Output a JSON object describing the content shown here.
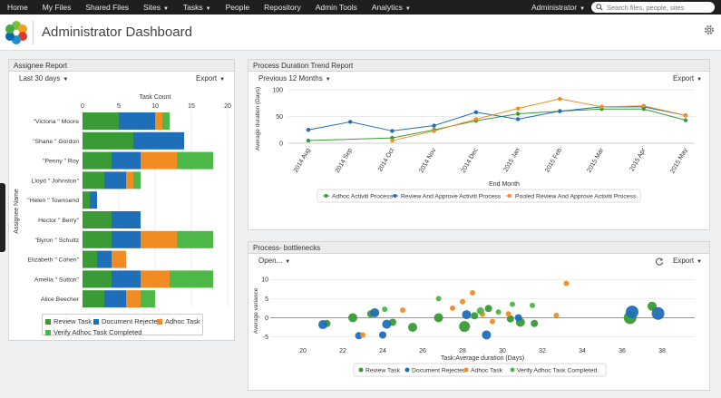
{
  "nav": {
    "items": [
      {
        "label": "Home",
        "caret": false
      },
      {
        "label": "My Files",
        "caret": false
      },
      {
        "label": "Shared Files",
        "caret": false
      },
      {
        "label": "Sites",
        "caret": true
      },
      {
        "label": "Tasks",
        "caret": true
      },
      {
        "label": "People",
        "caret": false
      },
      {
        "label": "Repository",
        "caret": false
      },
      {
        "label": "Admin Tools",
        "caret": false
      },
      {
        "label": "Analytics",
        "caret": true
      }
    ],
    "user": "Administrator",
    "search_placeholder": "Search files, people, sites"
  },
  "header": {
    "title": "Administrator Dashboard"
  },
  "colors": {
    "green": "#3a9a35",
    "blue": "#1f6fb8",
    "orange": "#f08c21",
    "lightgreen": "#4db847"
  },
  "assignee": {
    "title": "Assignee Report",
    "filter": "Last 30 days",
    "export": "Export"
  },
  "trend": {
    "title": "Process Duration Trend Report",
    "filter": "Previous 12 Months",
    "export": "Export"
  },
  "bottleneck": {
    "title": "Process- bottlenecks",
    "filter": "Open...",
    "export": "Export"
  },
  "chart_data": [
    {
      "type": "bar",
      "orientation": "horizontal",
      "stacked": true,
      "xlabel": "Task Count",
      "ylabel": "Assignee Name",
      "xlim": [
        0,
        20
      ],
      "xticks": [
        0,
        5,
        10,
        15,
        20
      ],
      "categories": [
        "\"Victoria \" Moore",
        "\"Shane \" Gordon",
        "\"Penny \" Roy",
        "Lloyd \" Johnston\"",
        "\"Helen \" Townsend",
        "Hector \" Berry\"",
        "\"Byron \" Schultz",
        "Elizabeth \" Cohen\"",
        "Amelia \" Sutton\"",
        "Alice Beecher"
      ],
      "series": [
        {
          "name": "Review Task",
          "color": "#3a9a35",
          "values": [
            5,
            7,
            4,
            3,
            1,
            4,
            4,
            2,
            4,
            3
          ]
        },
        {
          "name": "Document Rejected",
          "color": "#1f6fb8",
          "values": [
            5,
            7,
            4,
            3,
            1,
            4,
            4,
            2,
            4,
            3
          ]
        },
        {
          "name": "Adhoc Task",
          "color": "#f08c21",
          "values": [
            1,
            0,
            5,
            1,
            0,
            0,
            5,
            2,
            4,
            2
          ]
        },
        {
          "name": "Verify Adhoc Task Completed",
          "color": "#4db847",
          "values": [
            1,
            0,
            5,
            1,
            0,
            0,
            5,
            0,
            6,
            2
          ]
        }
      ]
    },
    {
      "type": "line",
      "xlabel": "End Month",
      "ylabel": "Average duration (Days)",
      "ylim": [
        0,
        100
      ],
      "yticks": [
        0,
        50,
        100
      ],
      "categories": [
        "2014 Aug",
        "2014 Sep",
        "2014 Oct",
        "2014 Nov",
        "2014 Dec",
        "2015 Jan",
        "2015 Feb",
        "2015 Mar",
        "2015 Apr",
        "2015 May"
      ],
      "series": [
        {
          "name": "Adhoc Activiti Process",
          "color": "#3a9a35",
          "values": [
            5,
            null,
            10,
            25,
            42,
            55,
            60,
            64,
            64,
            43
          ]
        },
        {
          "name": "Review And Approve Activiti Process",
          "color": "#1f6fb8",
          "values": [
            25,
            40,
            23,
            33,
            58,
            45,
            60,
            68,
            68,
            52
          ]
        },
        {
          "name": "Pooled Review And Approve Activiti Process",
          "color": "#f08c21",
          "values": [
            null,
            null,
            5,
            23,
            45,
            65,
            83,
            68,
            70,
            52
          ]
        }
      ]
    },
    {
      "type": "scatter",
      "xlabel": "Task:Average duration (Days)",
      "ylabel": "Average variance",
      "xlim": [
        19,
        39
      ],
      "ylim": [
        -7,
        11
      ],
      "xticks": [
        20,
        22,
        24,
        26,
        28,
        30,
        32,
        34,
        36,
        38
      ],
      "yticks": [
        -5,
        0,
        5,
        10
      ],
      "series": [
        {
          "name": "Review Task",
          "color": "#3a9a35",
          "points": [
            [
              21.2,
              -1.5,
              4
            ],
            [
              22.5,
              0,
              5
            ],
            [
              23.4,
              1,
              4
            ],
            [
              24.5,
              -1.2,
              4
            ],
            [
              25.5,
              -2.5,
              5
            ],
            [
              26.8,
              0,
              5
            ],
            [
              28.1,
              -2.3,
              6
            ],
            [
              28.6,
              0.5,
              4
            ],
            [
              29.3,
              2.4,
              4
            ],
            [
              30.4,
              -0.3,
              4
            ],
            [
              30.9,
              -1.2,
              5
            ],
            [
              31.6,
              -1.5,
              4
            ],
            [
              36.4,
              0,
              7
            ],
            [
              37.5,
              3,
              5
            ]
          ]
        },
        {
          "name": "Document Rejected",
          "color": "#1f6fb8",
          "points": [
            [
              21,
              -1.8,
              5
            ],
            [
              22.8,
              -4.7,
              4
            ],
            [
              23.6,
              1.3,
              5
            ],
            [
              24.2,
              -1.7,
              5
            ],
            [
              24,
              -4.5,
              4
            ],
            [
              28.2,
              0.8,
              5
            ],
            [
              29.2,
              -4.5,
              5
            ],
            [
              30.8,
              0,
              4
            ],
            [
              36.5,
              1.5,
              7
            ],
            [
              37.8,
              1.1,
              7
            ]
          ]
        },
        {
          "name": "Adhoc Task",
          "color": "#f08c21",
          "points": [
            [
              23,
              -4.5,
              3
            ],
            [
              25,
              2,
              3
            ],
            [
              27.5,
              2.5,
              3
            ],
            [
              28,
              4.2,
              3
            ],
            [
              28.5,
              6.5,
              3
            ],
            [
              29,
              0.9,
              3
            ],
            [
              29.5,
              -1,
              3
            ],
            [
              30.3,
              1,
              3
            ],
            [
              32.7,
              0.6,
              3
            ],
            [
              33.2,
              9,
              3
            ]
          ]
        },
        {
          "name": "Verify Adhoc Task Completed.",
          "color": "#4db847",
          "points": [
            [
              24.1,
              2.2,
              3
            ],
            [
              26.8,
              5,
              3
            ],
            [
              28.9,
              1.8,
              4
            ],
            [
              29.8,
              1.5,
              3
            ],
            [
              30.5,
              3.5,
              3
            ],
            [
              31.5,
              3.2,
              3
            ]
          ]
        }
      ]
    }
  ]
}
